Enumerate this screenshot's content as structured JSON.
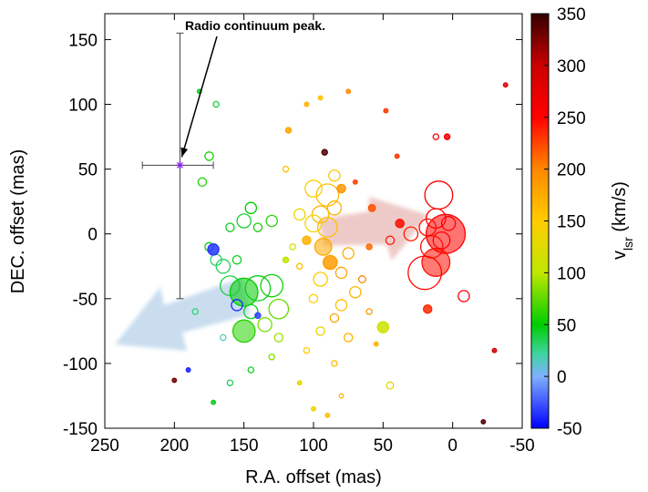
{
  "chart_data": {
    "type": "scatter",
    "xlabel": "R.A. offset (mas)",
    "ylabel": "DEC. offset (mas)",
    "colorbar_label": "v",
    "colorbar_label_sub": "lsr",
    "colorbar_label_unit": " (km/s)",
    "xlim": [
      250,
      -50
    ],
    "ylim": [
      -150,
      170
    ],
    "clim": [
      -50,
      350
    ],
    "x_ticks": [
      250,
      200,
      150,
      100,
      50,
      0,
      -50
    ],
    "y_ticks": [
      150,
      100,
      50,
      0,
      -50,
      -100,
      -150
    ],
    "colorbar_ticks": [
      350,
      300,
      250,
      200,
      150,
      100,
      50,
      0,
      -50
    ],
    "grid": false,
    "annotation": {
      "text": "Radio continuum peak.",
      "position": [
        196,
        53
      ],
      "error_x": [
        223,
        172
      ],
      "error_y": [
        -50,
        155
      ]
    },
    "colors": {
      "blue_arrow": "#b7d2ea",
      "red_arrow": "#e8b9b5",
      "marker": "#8a2be2"
    },
    "points": [
      {
        "x": 5,
        "y": 0,
        "v": 250,
        "size": 14,
        "filled": true
      },
      {
        "x": 12,
        "y": -22,
        "v": 245,
        "size": 10,
        "filled": true
      },
      {
        "x": 10,
        "y": 30,
        "v": 255,
        "size": 10,
        "filled": false
      },
      {
        "x": 12,
        "y": 12,
        "v": 250,
        "size": 7,
        "filled": false
      },
      {
        "x": 15,
        "y": -10,
        "v": 245,
        "size": 8,
        "filled": false
      },
      {
        "x": 20,
        "y": -30,
        "v": 248,
        "size": 12,
        "filled": false
      },
      {
        "x": 8,
        "y": -5,
        "v": 252,
        "size": 6,
        "filled": false
      },
      {
        "x": 3,
        "y": 8,
        "v": 250,
        "size": 5,
        "filled": false
      },
      {
        "x": 18,
        "y": 5,
        "v": 247,
        "size": 6,
        "filled": false
      },
      {
        "x": -8,
        "y": -48,
        "v": 255,
        "size": 4,
        "filled": false
      },
      {
        "x": 30,
        "y": 0,
        "v": 240,
        "size": 5,
        "filled": false
      },
      {
        "x": 38,
        "y": 8,
        "v": 245,
        "size": 3,
        "filled": true
      },
      {
        "x": 45,
        "y": -5,
        "v": 240,
        "size": 3,
        "filled": false
      },
      {
        "x": 18,
        "y": -58,
        "v": 235,
        "size": 3,
        "filled": true
      },
      {
        "x": 4,
        "y": 75,
        "v": 260,
        "size": 2,
        "filled": true
      },
      {
        "x": 12,
        "y": 75,
        "v": 258,
        "size": 2,
        "filled": false
      },
      {
        "x": -38,
        "y": 115,
        "v": 280,
        "size": 1.5,
        "filled": true
      },
      {
        "x": -30,
        "y": -90,
        "v": 300,
        "size": 1.5,
        "filled": true
      },
      {
        "x": -22,
        "y": -145,
        "v": 340,
        "size": 1.5,
        "filled": true
      },
      {
        "x": 48,
        "y": 95,
        "v": 230,
        "size": 1.5,
        "filled": true
      },
      {
        "x": 40,
        "y": 60,
        "v": 230,
        "size": 1.5,
        "filled": true
      },
      {
        "x": 70,
        "y": 40,
        "v": 225,
        "size": 1.5,
        "filled": true
      },
      {
        "x": 58,
        "y": 20,
        "v": 220,
        "size": 2.5,
        "filled": true
      },
      {
        "x": 60,
        "y": -10,
        "v": 210,
        "size": 2,
        "filled": true
      },
      {
        "x": 95,
        "y": 15,
        "v": 165,
        "size": 6,
        "filled": false
      },
      {
        "x": 90,
        "y": 30,
        "v": 160,
        "size": 8,
        "filled": false
      },
      {
        "x": 100,
        "y": 35,
        "v": 145,
        "size": 6,
        "filled": false
      },
      {
        "x": 85,
        "y": 20,
        "v": 170,
        "size": 5,
        "filled": false
      },
      {
        "x": 93,
        "y": -10,
        "v": 175,
        "size": 6,
        "filled": true
      },
      {
        "x": 88,
        "y": -22,
        "v": 185,
        "size": 5,
        "filled": true
      },
      {
        "x": 95,
        "y": -35,
        "v": 150,
        "size": 5,
        "filled": false
      },
      {
        "x": 80,
        "y": -30,
        "v": 180,
        "size": 4,
        "filled": false
      },
      {
        "x": 90,
        "y": 5,
        "v": 160,
        "size": 7,
        "filled": false
      },
      {
        "x": 100,
        "y": 8,
        "v": 140,
        "size": 6,
        "filled": false
      },
      {
        "x": 85,
        "y": 45,
        "v": 155,
        "size": 4,
        "filled": false
      },
      {
        "x": 80,
        "y": 35,
        "v": 190,
        "size": 3,
        "filled": true
      },
      {
        "x": 92,
        "y": 63,
        "v": 340,
        "size": 2,
        "filled": true
      },
      {
        "x": 105,
        "y": -5,
        "v": 170,
        "size": 3,
        "filled": true
      },
      {
        "x": 110,
        "y": 15,
        "v": 140,
        "size": 4,
        "filled": false
      },
      {
        "x": 75,
        "y": -15,
        "v": 175,
        "size": 4,
        "filled": false
      },
      {
        "x": 80,
        "y": -55,
        "v": 160,
        "size": 4,
        "filled": false
      },
      {
        "x": 100,
        "y": -50,
        "v": 150,
        "size": 3,
        "filled": false
      },
      {
        "x": 70,
        "y": -45,
        "v": 165,
        "size": 4,
        "filled": false
      },
      {
        "x": 95,
        "y": -75,
        "v": 130,
        "size": 3,
        "filled": false
      },
      {
        "x": 85,
        "y": -65,
        "v": 180,
        "size": 3,
        "filled": false
      },
      {
        "x": 75,
        "y": -80,
        "v": 170,
        "size": 3,
        "filled": false
      },
      {
        "x": 105,
        "y": -90,
        "v": 150,
        "size": 2,
        "filled": false
      },
      {
        "x": 85,
        "y": -100,
        "v": 160,
        "size": 2,
        "filled": false
      },
      {
        "x": 80,
        "y": -125,
        "v": 170,
        "size": 1.5,
        "filled": false
      },
      {
        "x": 90,
        "y": -140,
        "v": 160,
        "size": 1.5,
        "filled": true
      },
      {
        "x": 100,
        "y": -135,
        "v": 140,
        "size": 1.5,
        "filled": true
      },
      {
        "x": 110,
        "y": -115,
        "v": 130,
        "size": 1.5,
        "filled": true
      },
      {
        "x": 45,
        "y": -117,
        "v": 130,
        "size": 2.5,
        "filled": false
      },
      {
        "x": 50,
        "y": -72,
        "v": 110,
        "size": 4,
        "filled": true
      },
      {
        "x": 65,
        "y": -35,
        "v": 200,
        "size": 2.5,
        "filled": false
      },
      {
        "x": 60,
        "y": -60,
        "v": 190,
        "size": 2,
        "filled": false
      },
      {
        "x": 55,
        "y": -85,
        "v": 170,
        "size": 1.5,
        "filled": true
      },
      {
        "x": 120,
        "y": 50,
        "v": 160,
        "size": 2,
        "filled": false
      },
      {
        "x": 118,
        "y": 80,
        "v": 180,
        "size": 2,
        "filled": true
      },
      {
        "x": 105,
        "y": 100,
        "v": 170,
        "size": 1.5,
        "filled": true
      },
      {
        "x": 95,
        "y": 105,
        "v": 160,
        "size": 1.5,
        "filled": true
      },
      {
        "x": 75,
        "y": 110,
        "v": 200,
        "size": 1.5,
        "filled": true
      },
      {
        "x": 150,
        "y": -45,
        "v": 50,
        "size": 10,
        "filled": true
      },
      {
        "x": 160,
        "y": -40,
        "v": 40,
        "size": 7,
        "filled": false
      },
      {
        "x": 140,
        "y": -42,
        "v": 45,
        "size": 9,
        "filled": false
      },
      {
        "x": 130,
        "y": -40,
        "v": 55,
        "size": 8,
        "filled": false
      },
      {
        "x": 150,
        "y": -75,
        "v": 60,
        "size": 8,
        "filled": true
      },
      {
        "x": 125,
        "y": -58,
        "v": 75,
        "size": 7,
        "filled": false
      },
      {
        "x": 145,
        "y": -60,
        "v": 45,
        "size": 5,
        "filled": false
      },
      {
        "x": 135,
        "y": -70,
        "v": 80,
        "size": 5,
        "filled": false
      },
      {
        "x": 165,
        "y": -25,
        "v": 35,
        "size": 5,
        "filled": false
      },
      {
        "x": 170,
        "y": -20,
        "v": 30,
        "size": 4,
        "filled": false
      },
      {
        "x": 155,
        "y": -20,
        "v": 45,
        "size": 3,
        "filled": false
      },
      {
        "x": 150,
        "y": 10,
        "v": 40,
        "size": 5,
        "filled": false
      },
      {
        "x": 145,
        "y": 20,
        "v": 50,
        "size": 4,
        "filled": false
      },
      {
        "x": 130,
        "y": 10,
        "v": 60,
        "size": 4,
        "filled": false
      },
      {
        "x": 140,
        "y": 5,
        "v": 55,
        "size": 3,
        "filled": false
      },
      {
        "x": 160,
        "y": 5,
        "v": 45,
        "size": 3,
        "filled": false
      },
      {
        "x": 175,
        "y": -10,
        "v": 50,
        "size": 3,
        "filled": false
      },
      {
        "x": 172,
        "y": -12,
        "v": -35,
        "size": 4,
        "filled": true
      },
      {
        "x": 155,
        "y": -55,
        "v": -40,
        "size": 4,
        "filled": false
      },
      {
        "x": 140,
        "y": -63,
        "v": -30,
        "size": 2,
        "filled": true
      },
      {
        "x": 180,
        "y": 40,
        "v": 60,
        "size": 3,
        "filled": false
      },
      {
        "x": 175,
        "y": 60,
        "v": 55,
        "size": 3,
        "filled": false
      },
      {
        "x": 170,
        "y": 100,
        "v": 40,
        "size": 2,
        "filled": false
      },
      {
        "x": 182,
        "y": 110,
        "v": 45,
        "size": 1.5,
        "filled": true
      },
      {
        "x": 185,
        "y": -60,
        "v": 30,
        "size": 2,
        "filled": false
      },
      {
        "x": 165,
        "y": -80,
        "v": 15,
        "size": 2,
        "filled": false
      },
      {
        "x": 160,
        "y": -115,
        "v": 35,
        "size": 2,
        "filled": false
      },
      {
        "x": 145,
        "y": -105,
        "v": 45,
        "size": 2,
        "filled": false
      },
      {
        "x": 130,
        "y": -95,
        "v": 85,
        "size": 2,
        "filled": false
      },
      {
        "x": 125,
        "y": -80,
        "v": 90,
        "size": 3,
        "filled": false
      },
      {
        "x": 200,
        "y": -113,
        "v": 330,
        "size": 1.5,
        "filled": true
      },
      {
        "x": 190,
        "y": -105,
        "v": -40,
        "size": 1.5,
        "filled": true
      },
      {
        "x": 172,
        "y": -130,
        "v": 45,
        "size": 1.5,
        "filled": true
      },
      {
        "x": 110,
        "y": -25,
        "v": 160,
        "size": 2,
        "filled": false
      },
      {
        "x": 115,
        "y": -10,
        "v": 110,
        "size": 2,
        "filled": false
      },
      {
        "x": 120,
        "y": -20,
        "v": 100,
        "size": 2,
        "filled": true
      }
    ]
  }
}
